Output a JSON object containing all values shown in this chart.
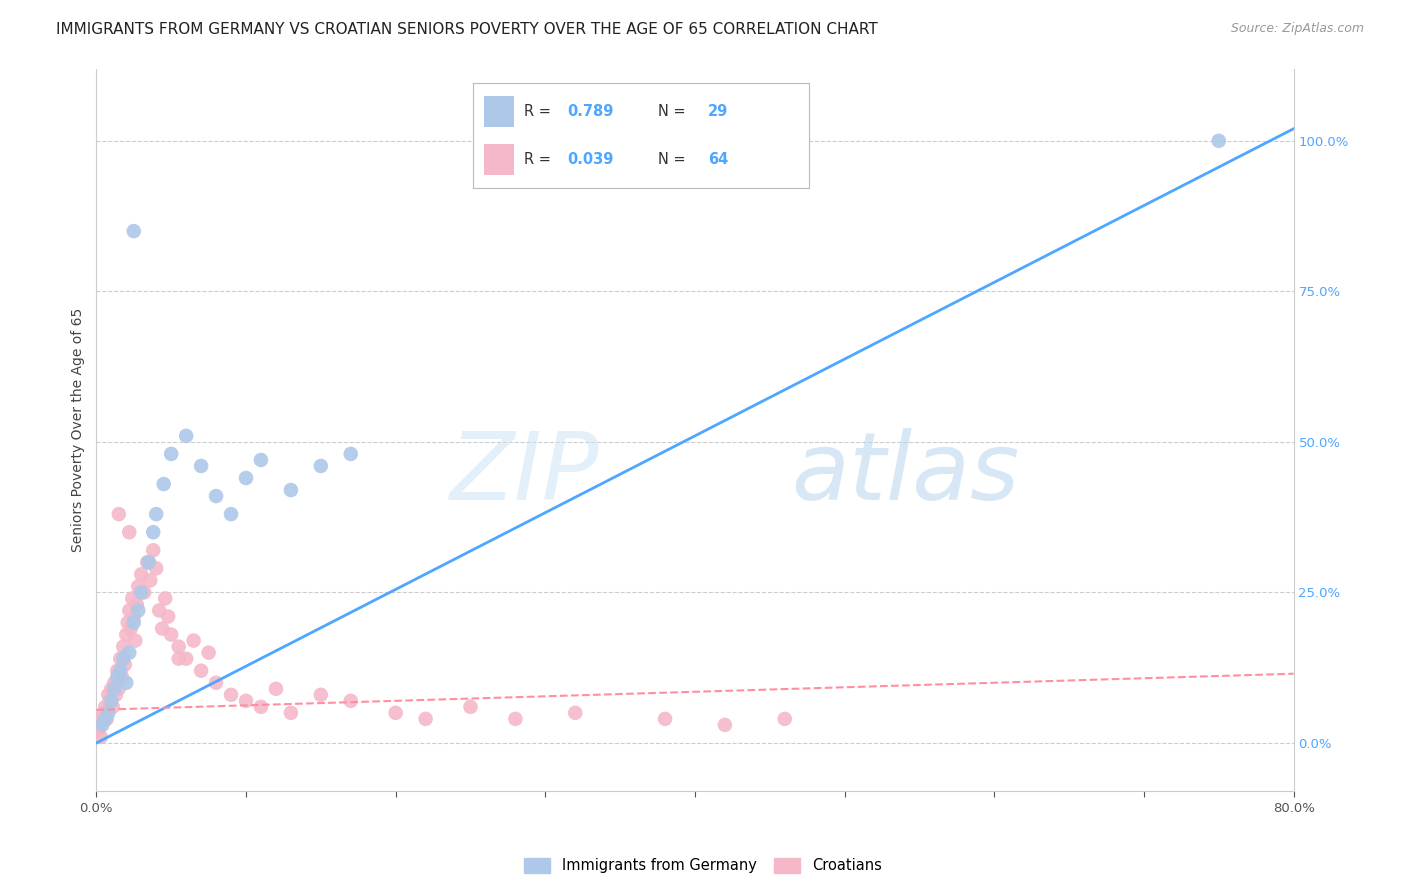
{
  "title": "IMMIGRANTS FROM GERMANY VS CROATIAN SENIORS POVERTY OVER THE AGE OF 65 CORRELATION CHART",
  "source": "Source: ZipAtlas.com",
  "ylabel": "Seniors Poverty Over the Age of 65",
  "watermark": "ZIPatlas",
  "legend1_label": "Immigrants from Germany",
  "legend2_label": "Croatians",
  "R1": 0.789,
  "N1": 29,
  "R2": 0.039,
  "N2": 64,
  "xlim": [
    0.0,
    0.8
  ],
  "ylim": [
    -0.08,
    1.12
  ],
  "yticks": [
    0.0,
    0.25,
    0.5,
    0.75,
    1.0
  ],
  "ytick_labels": [
    "0.0%",
    "25.0%",
    "50.0%",
    "75.0%",
    "100.0%"
  ],
  "xticks": [
    0.0,
    0.1,
    0.2,
    0.3,
    0.4,
    0.5,
    0.6,
    0.7,
    0.8
  ],
  "xtick_labels": [
    "0.0%",
    "",
    "",
    "",
    "",
    "",
    "",
    "",
    "80.0%"
  ],
  "color_blue": "#adc8e8",
  "color_pink": "#f4b8c8",
  "line_blue": "#4da6ff",
  "line_pink": "#ff8fa0",
  "germany_x": [
    0.004,
    0.006,
    0.008,
    0.01,
    0.012,
    0.014,
    0.016,
    0.018,
    0.02,
    0.022,
    0.025,
    0.028,
    0.03,
    0.035,
    0.038,
    0.04,
    0.045,
    0.05,
    0.06,
    0.07,
    0.08,
    0.09,
    0.1,
    0.11,
    0.13,
    0.15,
    0.17,
    0.025,
    0.75
  ],
  "germany_y": [
    0.03,
    0.04,
    0.05,
    0.07,
    0.09,
    0.11,
    0.12,
    0.14,
    0.1,
    0.15,
    0.2,
    0.22,
    0.25,
    0.3,
    0.35,
    0.38,
    0.43,
    0.48,
    0.51,
    0.46,
    0.41,
    0.38,
    0.44,
    0.47,
    0.42,
    0.46,
    0.48,
    0.85,
    1.0
  ],
  "croatian_x": [
    0.001,
    0.002,
    0.003,
    0.004,
    0.005,
    0.006,
    0.007,
    0.008,
    0.009,
    0.01,
    0.011,
    0.012,
    0.013,
    0.014,
    0.015,
    0.016,
    0.017,
    0.018,
    0.019,
    0.02,
    0.021,
    0.022,
    0.023,
    0.024,
    0.025,
    0.026,
    0.027,
    0.028,
    0.03,
    0.032,
    0.034,
    0.036,
    0.038,
    0.04,
    0.042,
    0.044,
    0.046,
    0.048,
    0.05,
    0.055,
    0.06,
    0.065,
    0.07,
    0.075,
    0.08,
    0.09,
    0.1,
    0.11,
    0.12,
    0.13,
    0.15,
    0.17,
    0.2,
    0.22,
    0.25,
    0.28,
    0.32,
    0.38,
    0.42,
    0.46,
    0.015,
    0.022,
    0.035,
    0.055
  ],
  "croatian_y": [
    0.02,
    0.03,
    0.01,
    0.04,
    0.05,
    0.06,
    0.04,
    0.08,
    0.07,
    0.09,
    0.06,
    0.1,
    0.08,
    0.12,
    0.09,
    0.14,
    0.11,
    0.16,
    0.13,
    0.18,
    0.2,
    0.22,
    0.19,
    0.24,
    0.21,
    0.17,
    0.23,
    0.26,
    0.28,
    0.25,
    0.3,
    0.27,
    0.32,
    0.29,
    0.22,
    0.19,
    0.24,
    0.21,
    0.18,
    0.16,
    0.14,
    0.17,
    0.12,
    0.15,
    0.1,
    0.08,
    0.07,
    0.06,
    0.09,
    0.05,
    0.08,
    0.07,
    0.05,
    0.04,
    0.06,
    0.04,
    0.05,
    0.04,
    0.03,
    0.04,
    0.38,
    0.35,
    0.3,
    0.14
  ],
  "blue_line_x0": 0.0,
  "blue_line_y0": 0.0,
  "blue_line_x1": 0.8,
  "blue_line_y1": 1.02,
  "pink_line_x0": 0.0,
  "pink_line_y0": 0.055,
  "pink_line_x1": 0.8,
  "pink_line_y1": 0.115,
  "title_fontsize": 11,
  "source_fontsize": 9,
  "axis_label_fontsize": 10,
  "tick_fontsize": 9.5
}
